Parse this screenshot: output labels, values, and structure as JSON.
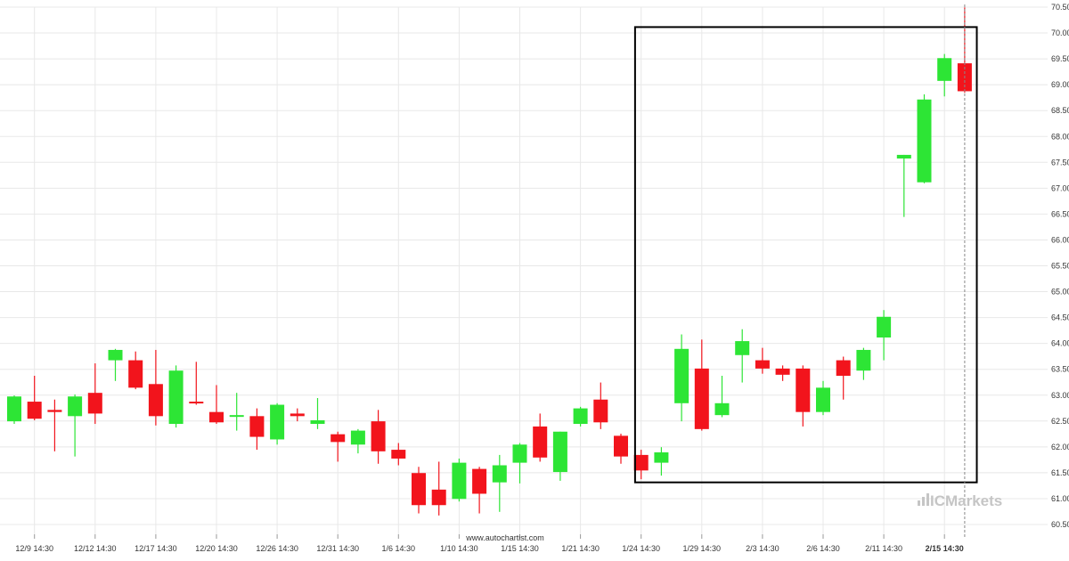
{
  "source_label": "www.autochartist.com",
  "brand": {
    "logo_text": "ICMarkets",
    "prefix": "IC",
    "suffix": "Markets",
    "color": "#c5c5c5"
  },
  "colors": {
    "up": "#2de535",
    "down": "#f2141c",
    "wick_up": "#2de535",
    "wick_down": "#f2141c",
    "box": "#000000",
    "grid": "#e8e8e8",
    "current_line": "#888888"
  },
  "chart_data": {
    "type": "candlestick",
    "title": "",
    "xlabel": "",
    "ylabel": "",
    "ylim": [
      60.3,
      70.5057
    ],
    "y_ticks": [
      "70.5057",
      "70.0057",
      "69.5057",
      "69.0057",
      "68.5057",
      "68.0057",
      "67.5057",
      "67.0057",
      "66.5057",
      "66.0057",
      "65.5057",
      "65.0057",
      "64.5057",
      "64.0057",
      "63.5057",
      "63.0057",
      "62.5057",
      "62.0057",
      "61.5057",
      "61.0057",
      "60.5057"
    ],
    "x_ticks": [
      {
        "label": "12/9 14:30",
        "index": 1
      },
      {
        "label": "12/12 14:30",
        "index": 4
      },
      {
        "label": "12/17 14:30",
        "index": 7
      },
      {
        "label": "12/20 14:30",
        "index": 10
      },
      {
        "label": "12/26 14:30",
        "index": 13
      },
      {
        "label": "12/31 14:30",
        "index": 16
      },
      {
        "label": "1/6 14:30",
        "index": 19
      },
      {
        "label": "1/10 14:30",
        "index": 22
      },
      {
        "label": "1/15 14:30",
        "index": 25
      },
      {
        "label": "1/21 14:30",
        "index": 28
      },
      {
        "label": "1/24 14:30",
        "index": 31
      },
      {
        "label": "1/29 14:30",
        "index": 34
      },
      {
        "label": "2/3 14:30",
        "index": 37
      },
      {
        "label": "2/6 14:30",
        "index": 40
      },
      {
        "label": "2/11 14:30",
        "index": 43
      },
      {
        "label": "2/15 14:30",
        "index": 46,
        "bold": true
      }
    ],
    "candles": [
      {
        "o": 62.5,
        "h": 63.0,
        "l": 62.45,
        "c": 62.98
      },
      {
        "o": 62.88,
        "h": 63.38,
        "l": 62.52,
        "c": 62.55
      },
      {
        "o": 62.72,
        "h": 62.92,
        "l": 61.92,
        "c": 62.68
      },
      {
        "o": 62.6,
        "h": 63.02,
        "l": 61.82,
        "c": 62.98
      },
      {
        "o": 63.05,
        "h": 63.62,
        "l": 62.45,
        "c": 62.65
      },
      {
        "o": 63.68,
        "h": 63.9,
        "l": 63.28,
        "c": 63.88
      },
      {
        "o": 63.68,
        "h": 63.85,
        "l": 63.12,
        "c": 63.15
      },
      {
        "o": 63.22,
        "h": 63.88,
        "l": 62.42,
        "c": 62.6
      },
      {
        "o": 62.45,
        "h": 63.58,
        "l": 62.38,
        "c": 63.48
      },
      {
        "o": 62.88,
        "h": 63.65,
        "l": 62.82,
        "c": 62.86
      },
      {
        "o": 62.68,
        "h": 63.2,
        "l": 62.45,
        "c": 62.48
      },
      {
        "o": 62.6,
        "h": 63.05,
        "l": 62.32,
        "c": 62.62
      },
      {
        "o": 62.6,
        "h": 62.75,
        "l": 61.95,
        "c": 62.2
      },
      {
        "o": 62.15,
        "h": 62.85,
        "l": 62.05,
        "c": 62.82
      },
      {
        "o": 62.65,
        "h": 62.75,
        "l": 62.5,
        "c": 62.6
      },
      {
        "o": 62.45,
        "h": 62.95,
        "l": 62.35,
        "c": 62.52
      },
      {
        "o": 62.25,
        "h": 62.3,
        "l": 61.72,
        "c": 62.1
      },
      {
        "o": 62.05,
        "h": 62.35,
        "l": 61.88,
        "c": 62.32
      },
      {
        "o": 62.5,
        "h": 62.72,
        "l": 61.68,
        "c": 61.92
      },
      {
        "o": 61.95,
        "h": 62.08,
        "l": 61.65,
        "c": 61.78
      },
      {
        "o": 61.5,
        "h": 61.62,
        "l": 60.72,
        "c": 60.88
      },
      {
        "o": 61.18,
        "h": 61.72,
        "l": 60.68,
        "c": 60.88
      },
      {
        "o": 61.0,
        "h": 61.78,
        "l": 60.95,
        "c": 61.7
      },
      {
        "o": 61.58,
        "h": 61.62,
        "l": 60.72,
        "c": 61.1
      },
      {
        "o": 61.32,
        "h": 61.85,
        "l": 60.75,
        "c": 61.65
      },
      {
        "o": 61.7,
        "h": 62.08,
        "l": 61.3,
        "c": 62.05
      },
      {
        "o": 62.4,
        "h": 62.65,
        "l": 61.72,
        "c": 61.8
      },
      {
        "o": 61.52,
        "h": 62.3,
        "l": 61.35,
        "c": 62.3
      },
      {
        "o": 62.45,
        "h": 62.78,
        "l": 62.4,
        "c": 62.75
      },
      {
        "o": 62.92,
        "h": 63.25,
        "l": 62.35,
        "c": 62.48
      },
      {
        "o": 62.22,
        "h": 62.26,
        "l": 61.68,
        "c": 61.82
      },
      {
        "o": 61.85,
        "h": 61.95,
        "l": 61.38,
        "c": 61.55
      },
      {
        "o": 61.7,
        "h": 62.0,
        "l": 61.45,
        "c": 61.9
      },
      {
        "o": 62.85,
        "h": 64.18,
        "l": 62.5,
        "c": 63.9
      },
      {
        "o": 63.52,
        "h": 64.08,
        "l": 62.32,
        "c": 62.35
      },
      {
        "o": 62.62,
        "h": 63.38,
        "l": 62.58,
        "c": 62.85
      },
      {
        "o": 63.78,
        "h": 64.28,
        "l": 63.25,
        "c": 64.05
      },
      {
        "o": 63.68,
        "h": 63.92,
        "l": 63.42,
        "c": 63.52
      },
      {
        "o": 63.52,
        "h": 63.58,
        "l": 63.28,
        "c": 63.4
      },
      {
        "o": 63.52,
        "h": 63.58,
        "l": 62.4,
        "c": 62.68
      },
      {
        "o": 62.68,
        "h": 63.28,
        "l": 62.62,
        "c": 63.15
      },
      {
        "o": 63.68,
        "h": 63.75,
        "l": 62.92,
        "c": 63.38
      },
      {
        "o": 63.48,
        "h": 63.92,
        "l": 63.3,
        "c": 63.88
      },
      {
        "o": 64.12,
        "h": 64.65,
        "l": 63.68,
        "c": 64.52
      },
      {
        "o": 67.58,
        "h": 67.65,
        "l": 66.45,
        "c": 67.65
      },
      {
        "o": 67.12,
        "h": 68.82,
        "l": 67.1,
        "c": 68.72
      },
      {
        "o": 69.08,
        "h": 69.6,
        "l": 68.78,
        "c": 69.52
      },
      {
        "o": 69.42,
        "h": 70.5,
        "l": 68.85,
        "c": 68.88
      }
    ],
    "pattern_box": {
      "start_index": 30.7,
      "end_index": 47.6,
      "high": 70.12,
      "low": 61.32
    },
    "current_marker_index": 47
  }
}
